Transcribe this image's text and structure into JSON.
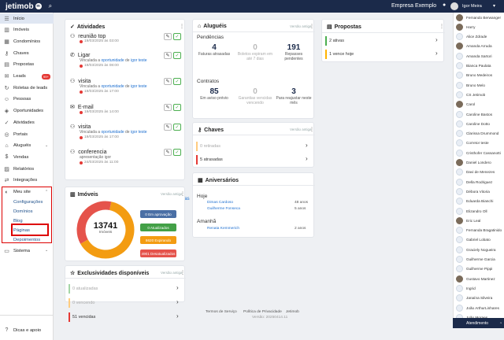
{
  "topbar": {
    "logo": "jetimob",
    "logo_mark": "m",
    "company": "Empresa Exemplo",
    "user": "Igor Meira"
  },
  "sidebar": {
    "items": [
      {
        "label": "Início",
        "icon": "list-icon"
      },
      {
        "label": "Imóveis",
        "icon": "building-icon"
      },
      {
        "label": "Condomínios",
        "icon": "condo-icon"
      },
      {
        "label": "Chaves",
        "icon": "key-icon"
      },
      {
        "label": "Propostas",
        "icon": "proposal-icon"
      },
      {
        "label": "Leads",
        "icon": "leads-icon",
        "badge": "99+"
      },
      {
        "label": "Roletas de leads",
        "icon": "roulette-icon"
      },
      {
        "label": "Pessoas",
        "icon": "people-icon"
      },
      {
        "label": "Oportunidades",
        "icon": "opportunity-icon"
      },
      {
        "label": "Atividades",
        "icon": "activity-icon"
      },
      {
        "label": "Portais",
        "icon": "portal-icon"
      },
      {
        "label": "Aluguéis",
        "icon": "rent-icon"
      },
      {
        "label": "Vendas",
        "icon": "sales-icon"
      },
      {
        "label": "Relatórios",
        "icon": "report-icon"
      },
      {
        "label": "Integrações",
        "icon": "integration-icon"
      },
      {
        "label": "Meu site",
        "icon": "site-icon"
      }
    ],
    "site_sub": [
      "Configurações",
      "Domínios",
      "Blog",
      "Páginas",
      "Depoimentos"
    ],
    "sistema": "Sistema",
    "help": "Dicas e apoio"
  },
  "atividades": {
    "title": "Atividades",
    "items": [
      {
        "title": "reunião top",
        "date": "19/03/2025 às 03:00",
        "linked": false
      },
      {
        "title": "Ligar",
        "date": "19/03/2025 às 08:00",
        "linked": true
      },
      {
        "title": "visita",
        "date": "19/03/2025 às 17:00",
        "linked": true
      },
      {
        "title": "E-mail",
        "date": "19/03/2025 às 14:00",
        "linked": false
      },
      {
        "title": "visita",
        "date": "19/03/2025 às 17:00",
        "linked": true
      },
      {
        "title": "conferencia",
        "sub": "apresentação igor",
        "date": "24/03/2025 às 11:00",
        "linked": false
      }
    ],
    "linked_prefix": "Vinculada a",
    "linked_link": "oportunidade",
    "linked_mid": "de",
    "linked_person": "igor teste",
    "see_all": "Ver todas"
  },
  "alugueis": {
    "title": "Aluguéis",
    "link": "Versão antiga",
    "pendencias": "Pendências",
    "stats1": [
      {
        "num": "4",
        "label": "Faturas atrasadas",
        "muted": false
      },
      {
        "num": "0",
        "label": "Boletos expiram em até 7 dias",
        "muted": true
      },
      {
        "num": "191",
        "label": "Repasses pendentes",
        "muted": false
      }
    ],
    "contratos": "Contratos",
    "stats2": [
      {
        "num": "85",
        "label": "Em aviso prévio",
        "muted": false
      },
      {
        "num": "0",
        "label": "Garantias vencidas vencendo",
        "muted": true
      },
      {
        "num": "3",
        "label": "Para reajustar neste mês",
        "muted": false
      }
    ]
  },
  "propostas": {
    "title": "Propostas",
    "rows": [
      {
        "label": "2 ativas",
        "color": "#4caf50"
      },
      {
        "label": "1 vence hoje",
        "color": "#ffb300"
      }
    ]
  },
  "chaves": {
    "title": "Chaves",
    "link": "Versão antiga",
    "rows": [
      {
        "label": "0 retiradas",
        "color": "#ffcc80",
        "muted": true
      },
      {
        "label": "5 atrasadas",
        "color": "#e53935",
        "muted": false
      }
    ]
  },
  "aniversarios": {
    "title": "Aniversários",
    "hoje": "Hoje",
    "today_list": [
      {
        "name": "Dimas Cardoso",
        "age": "48 anos"
      },
      {
        "name": "Guilherme Fonseca",
        "age": "5 anos"
      }
    ],
    "amanha": "Amanhã",
    "tomorrow_list": [
      {
        "name": "Renata Kemmerich",
        "age": "2 anos"
      }
    ]
  },
  "imoveis": {
    "title": "Imóveis",
    "link": "Versão antiga",
    "total": "13741",
    "total_label": "Imóveis",
    "donut": [
      {
        "label": "0 Em aprovação",
        "value": 0,
        "color": "#4a6fa5"
      },
      {
        "label": "0 Atualizados",
        "value": 0,
        "color": "#43a047"
      },
      {
        "label": "8620 Expirando",
        "value": 8620,
        "color": "#f39c12"
      },
      {
        "label": "4901 Desatualizados",
        "value": 4901,
        "color": "#e5534b"
      }
    ]
  },
  "exclusividades": {
    "title": "Exclusividades disponíveis",
    "link": "Versão antiga",
    "rows": [
      {
        "label": "0 atualizadas",
        "color": "#a5d6a7",
        "muted": true
      },
      {
        "label": "0 vencendo",
        "color": "#ffcc80",
        "muted": true
      },
      {
        "label": "51 vencidas",
        "color": "#e53935",
        "muted": false
      }
    ]
  },
  "contacts": [
    "Fernando Berwanger",
    "Harry",
    "Alice Zdrade",
    "Amanda Arruda",
    "Amanda Sartori",
    "Bianca Paulata",
    "Bruno Medeiros",
    "Bruno Melo",
    "CS Jetimob",
    "Carol",
    "Caroline Bastos",
    "Caroline Dotto",
    "Clarissa Drummond",
    "Corretor teste",
    "Cristhofer Cassanotti",
    "Daniel Londero",
    "Davi de Menezes",
    "Della Rodriguez",
    "Débora Vitoria",
    "Eduarda Bianchi",
    "Elizandro Oll",
    "Eric Leal",
    "Fernanda Bragatinido",
    "Gabriel Lobato",
    "Graciely Nogueira",
    "Guilherme Garcia",
    "Guilherme Pippi",
    "Gustavo Martinez",
    "Ingrid",
    "Janaína Silveira",
    "João ArthurLinhares",
    "João Moraes"
  ],
  "atendimento": "Atendimento",
  "footer": {
    "terms": "Termos de Serviço",
    "privacy": "Política de Privacidade",
    "brand": "Jetimob",
    "version": "Versão: 20250414.11"
  }
}
